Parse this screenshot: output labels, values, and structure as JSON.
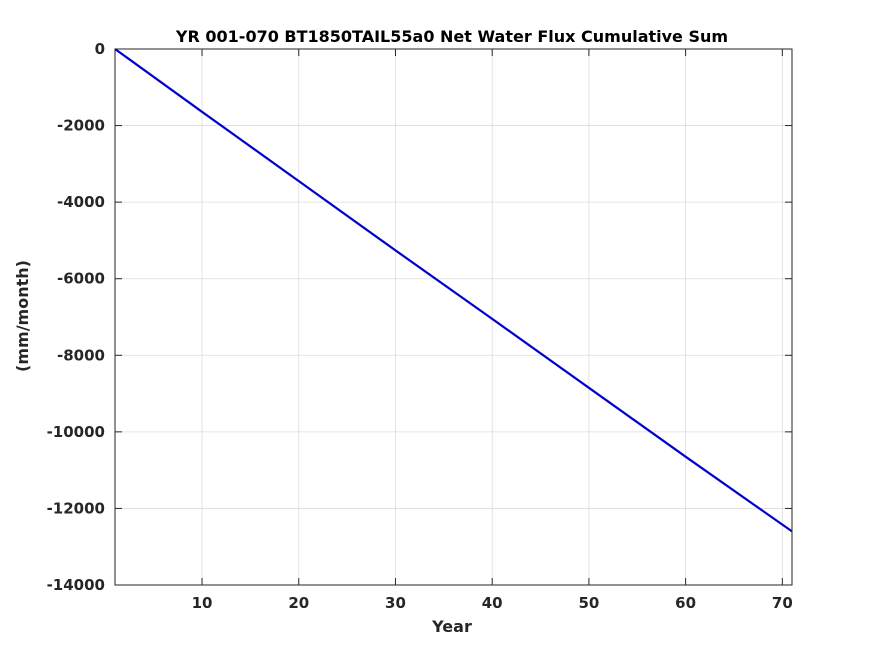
{
  "chart_data": {
    "type": "line",
    "title": "YR 001-070 BT1850TAIL55a0 Net Water Flux Cumulative Sum",
    "xlabel": "Year",
    "ylabel": "(mm/month)",
    "xlim": [
      1,
      71
    ],
    "ylim": [
      -14000,
      0
    ],
    "xticks": [
      10,
      20,
      30,
      40,
      50,
      60,
      70
    ],
    "yticks": [
      0,
      -2000,
      -4000,
      -6000,
      -8000,
      -10000,
      -12000,
      -14000
    ],
    "xtick_labels": [
      "10",
      "20",
      "30",
      "40",
      "50",
      "60",
      "70"
    ],
    "ytick_labels": [
      "0",
      "-2000",
      "-4000",
      "-6000",
      "-8000",
      "-10000",
      "-12000",
      "-14000"
    ],
    "grid": true,
    "legend": "none",
    "line_color": "#0000cc",
    "series": [
      {
        "x": [
          1,
          10,
          20,
          30,
          40,
          50,
          60,
          71
        ],
        "values": [
          0,
          -1640,
          -3450,
          -5260,
          -7050,
          -8850,
          -10650,
          -12600
        ]
      }
    ]
  }
}
